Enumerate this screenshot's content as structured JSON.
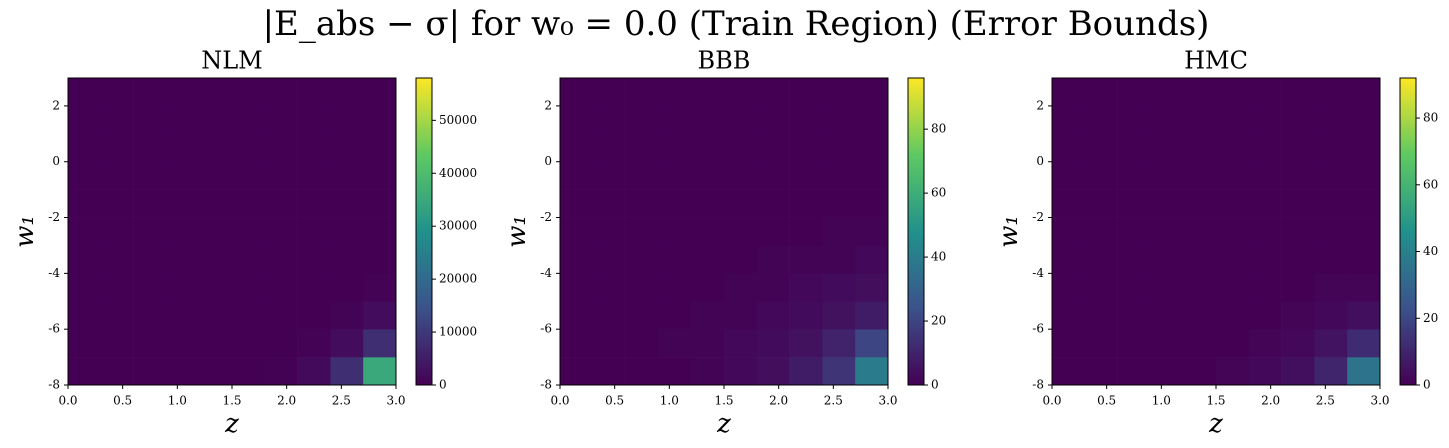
{
  "chart_data": [
    {
      "type": "heatmap",
      "title": "NLM",
      "x_label": "z",
      "y_label": "w₁",
      "colormap": "viridis",
      "xbins": [
        0,
        0.3,
        0.6,
        0.9,
        1.2,
        1.5,
        1.8,
        2.1,
        2.4,
        2.7,
        3.0
      ],
      "ybins": [
        -8,
        -7,
        -6,
        -5,
        -4,
        -3,
        -2,
        -1,
        0,
        1,
        2,
        3
      ],
      "values": [
        [
          0,
          0,
          0,
          0,
          0,
          0,
          200,
          1500,
          8000,
          35000
        ],
        [
          0,
          0,
          0,
          0,
          0,
          0,
          0,
          300,
          2000,
          8000
        ],
        [
          0,
          0,
          0,
          0,
          0,
          0,
          0,
          0,
          500,
          2000
        ],
        [
          0,
          0,
          0,
          0,
          0,
          0,
          0,
          0,
          0,
          300
        ],
        [
          0,
          0,
          0,
          0,
          0,
          0,
          0,
          0,
          0,
          0
        ],
        [
          0,
          0,
          0,
          0,
          0,
          0,
          0,
          0,
          0,
          0
        ],
        [
          0,
          0,
          0,
          0,
          0,
          0,
          0,
          0,
          0,
          0
        ],
        [
          0,
          0,
          0,
          0,
          0,
          0,
          0,
          0,
          0,
          0
        ],
        [
          0,
          0,
          0,
          0,
          0,
          0,
          0,
          0,
          0,
          0
        ],
        [
          0,
          0,
          0,
          0,
          0,
          0,
          0,
          0,
          0,
          0
        ],
        [
          0,
          0,
          0,
          0,
          0,
          0,
          0,
          0,
          0,
          0
        ]
      ],
      "xlim": [
        0,
        3
      ],
      "ylim": [
        -8,
        3
      ],
      "xticks": [
        {
          "value": 0,
          "label": "0.0"
        },
        0.5,
        {
          "value": 1,
          "label": "1.0"
        },
        1.5,
        {
          "value": 2,
          "label": "2.0"
        },
        2.5,
        {
          "value": 3,
          "label": "3.0"
        }
      ],
      "yticks": [
        -8,
        -6,
        -4,
        -2,
        0,
        2
      ],
      "zlim": [
        0,
        58000
      ],
      "zticks": [
        0,
        10000,
        20000,
        30000,
        40000,
        50000
      ]
    },
    {
      "type": "heatmap",
      "title": "BBB",
      "x_label": "z",
      "y_label": "w₁",
      "colormap": "viridis",
      "xbins": [
        0,
        0.3,
        0.6,
        0.9,
        1.2,
        1.5,
        1.8,
        2.1,
        2.4,
        2.7,
        3.0
      ],
      "ybins": [
        -8,
        -7,
        -6,
        -5,
        -4,
        -3,
        -2,
        -1,
        0,
        1,
        2,
        3
      ],
      "values": [
        [
          0,
          0,
          0,
          0,
          1,
          2,
          4,
          8,
          15,
          40
        ],
        [
          0,
          0,
          0,
          1,
          1,
          2,
          3,
          5,
          10,
          20
        ],
        [
          0,
          0,
          0,
          0,
          1,
          1,
          2,
          3,
          5,
          8
        ],
        [
          0,
          0,
          0,
          0,
          0,
          1,
          1,
          2,
          3,
          4
        ],
        [
          0,
          0,
          0,
          0,
          0,
          0,
          1,
          1,
          1,
          2
        ],
        [
          0,
          0,
          0,
          0,
          0,
          0,
          0,
          0,
          1,
          1
        ],
        [
          0,
          0,
          0,
          0,
          0,
          0,
          0,
          0,
          0,
          0
        ],
        [
          0,
          0,
          0,
          0,
          0,
          0,
          0,
          0,
          0,
          0
        ],
        [
          0,
          0,
          0,
          0,
          0,
          0,
          0,
          0,
          0,
          0
        ],
        [
          0,
          0,
          0,
          0,
          0,
          0,
          0,
          0,
          0,
          0
        ],
        [
          0,
          0,
          0,
          0,
          0,
          0,
          0,
          0,
          0,
          0
        ]
      ],
      "xlim": [
        0,
        3
      ],
      "ylim": [
        -8,
        3
      ],
      "xticks": [
        {
          "value": 0,
          "label": "0.0"
        },
        0.5,
        {
          "value": 1,
          "label": "1.0"
        },
        1.5,
        {
          "value": 2,
          "label": "2.0"
        },
        2.5,
        {
          "value": 3,
          "label": "3.0"
        }
      ],
      "yticks": [
        -8,
        -6,
        -4,
        -2,
        0,
        2
      ],
      "zlim": [
        0,
        96
      ],
      "zticks": [
        0,
        20,
        40,
        60,
        80
      ]
    },
    {
      "type": "heatmap",
      "title": "HMC",
      "x_label": "z",
      "y_label": "w₁",
      "colormap": "viridis",
      "xbins": [
        0,
        0.3,
        0.6,
        0.9,
        1.2,
        1.5,
        1.8,
        2.1,
        2.4,
        2.7,
        3.0
      ],
      "ybins": [
        -8,
        -7,
        -6,
        -5,
        -4,
        -3,
        -2,
        -1,
        0,
        1,
        2,
        3
      ],
      "values": [
        [
          0,
          0,
          0,
          0,
          0,
          1,
          2,
          4,
          10,
          35
        ],
        [
          0,
          0,
          0,
          0,
          0,
          0,
          1,
          2,
          5,
          12
        ],
        [
          0,
          0,
          0,
          0,
          0,
          0,
          0,
          1,
          2,
          4
        ],
        [
          0,
          0,
          0,
          0,
          0,
          0,
          0,
          0,
          1,
          1
        ],
        [
          0,
          0,
          0,
          0,
          0,
          0,
          0,
          0,
          0,
          0
        ],
        [
          0,
          0,
          0,
          0,
          0,
          0,
          0,
          0,
          0,
          0
        ],
        [
          0,
          0,
          0,
          0,
          0,
          0,
          0,
          0,
          0,
          0
        ],
        [
          0,
          0,
          0,
          0,
          0,
          0,
          0,
          0,
          0,
          0
        ],
        [
          0,
          0,
          0,
          0,
          0,
          0,
          0,
          0,
          0,
          0
        ],
        [
          0,
          0,
          0,
          0,
          0,
          0,
          0,
          0,
          0,
          0
        ],
        [
          0,
          0,
          0,
          0,
          0,
          0,
          0,
          0,
          0,
          0
        ]
      ],
      "xlim": [
        0,
        3
      ],
      "ylim": [
        -8,
        3
      ],
      "xticks": [
        {
          "value": 0,
          "label": "0.0"
        },
        0.5,
        {
          "value": 1,
          "label": "1.0"
        },
        1.5,
        {
          "value": 2,
          "label": "2.0"
        },
        2.5,
        {
          "value": 3,
          "label": "3.0"
        }
      ],
      "yticks": [
        -8,
        -6,
        -4,
        -2,
        0,
        2
      ],
      "zlim": [
        0,
        92
      ],
      "zticks": [
        0,
        20,
        40,
        60,
        80
      ]
    }
  ],
  "title": "|E_abs − σ| for w₀ = 0.0 (Train Region) (Error Bounds)"
}
